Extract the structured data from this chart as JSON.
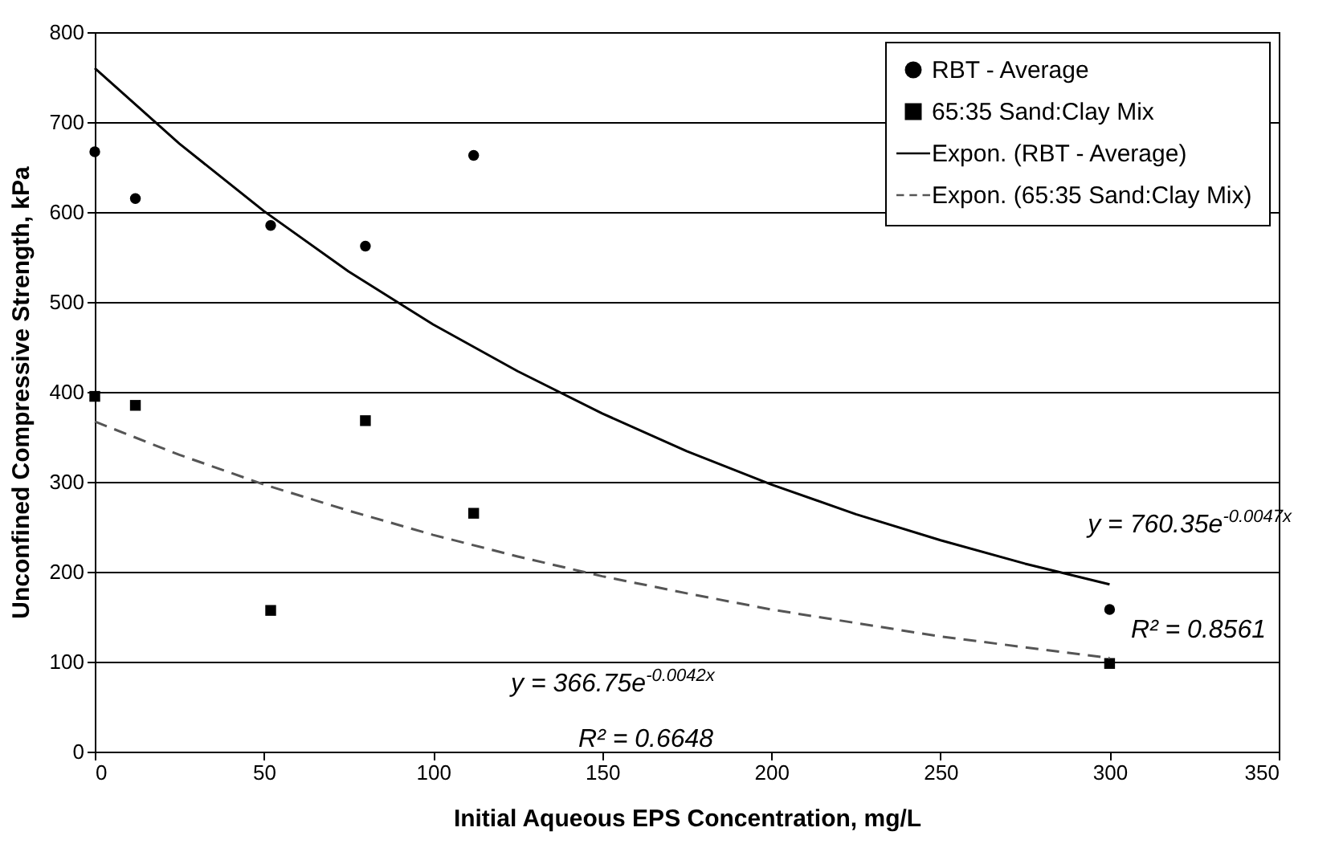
{
  "chart_data": {
    "type": "scatter",
    "xlabel": "Initial Aqueous EPS Concentration, mg/L",
    "ylabel": "Unconfined Compressive Strength, kPa",
    "xlim": [
      0,
      350
    ],
    "xticks": [
      0,
      50,
      100,
      150,
      200,
      250,
      300,
      350
    ],
    "ylim": [
      0,
      800
    ],
    "yticks": [
      0,
      100,
      200,
      300,
      400,
      500,
      600,
      700,
      800
    ],
    "grid": "y",
    "legend": "top right",
    "series": [
      {
        "name": "RBT - Average",
        "marker": "circle",
        "color": "#000000",
        "x": [
          0,
          12,
          52,
          80,
          112,
          300
        ],
        "values": [
          667,
          615,
          585,
          562,
          663,
          158
        ]
      },
      {
        "name": "65:35 Sand:Clay Mix",
        "marker": "square",
        "color": "#000000",
        "x": [
          0,
          12,
          52,
          80,
          112,
          300
        ],
        "values": [
          395,
          385,
          157,
          368,
          265,
          98
        ]
      },
      {
        "name": "Expon. (RBT - Average)",
        "type": "line",
        "line_style": "solid",
        "color": "#000000",
        "x": [
          0,
          25,
          50,
          75,
          100,
          125,
          150,
          175,
          200,
          225,
          250,
          275,
          300
        ],
        "values": [
          760,
          676,
          601,
          534,
          475,
          423,
          376,
          334,
          297,
          264,
          235,
          209,
          186
        ]
      },
      {
        "name": "Expon. (65:35 Sand:Clay Mix)",
        "type": "line",
        "line_style": "dashed",
        "color": "#555555",
        "x": [
          0,
          25,
          50,
          75,
          100,
          125,
          150,
          175,
          200,
          225,
          250,
          275,
          300
        ],
        "values": [
          367,
          330,
          297,
          268,
          241,
          217,
          195,
          176,
          158,
          143,
          128,
          116,
          104
        ]
      }
    ],
    "annotations": [
      "y = 760.35e$^{-0.0047x}$",
      "R² = 0.8561",
      "y = 366.75e$^{-0.0042x}$",
      "R² = 0.6648"
    ]
  }
}
